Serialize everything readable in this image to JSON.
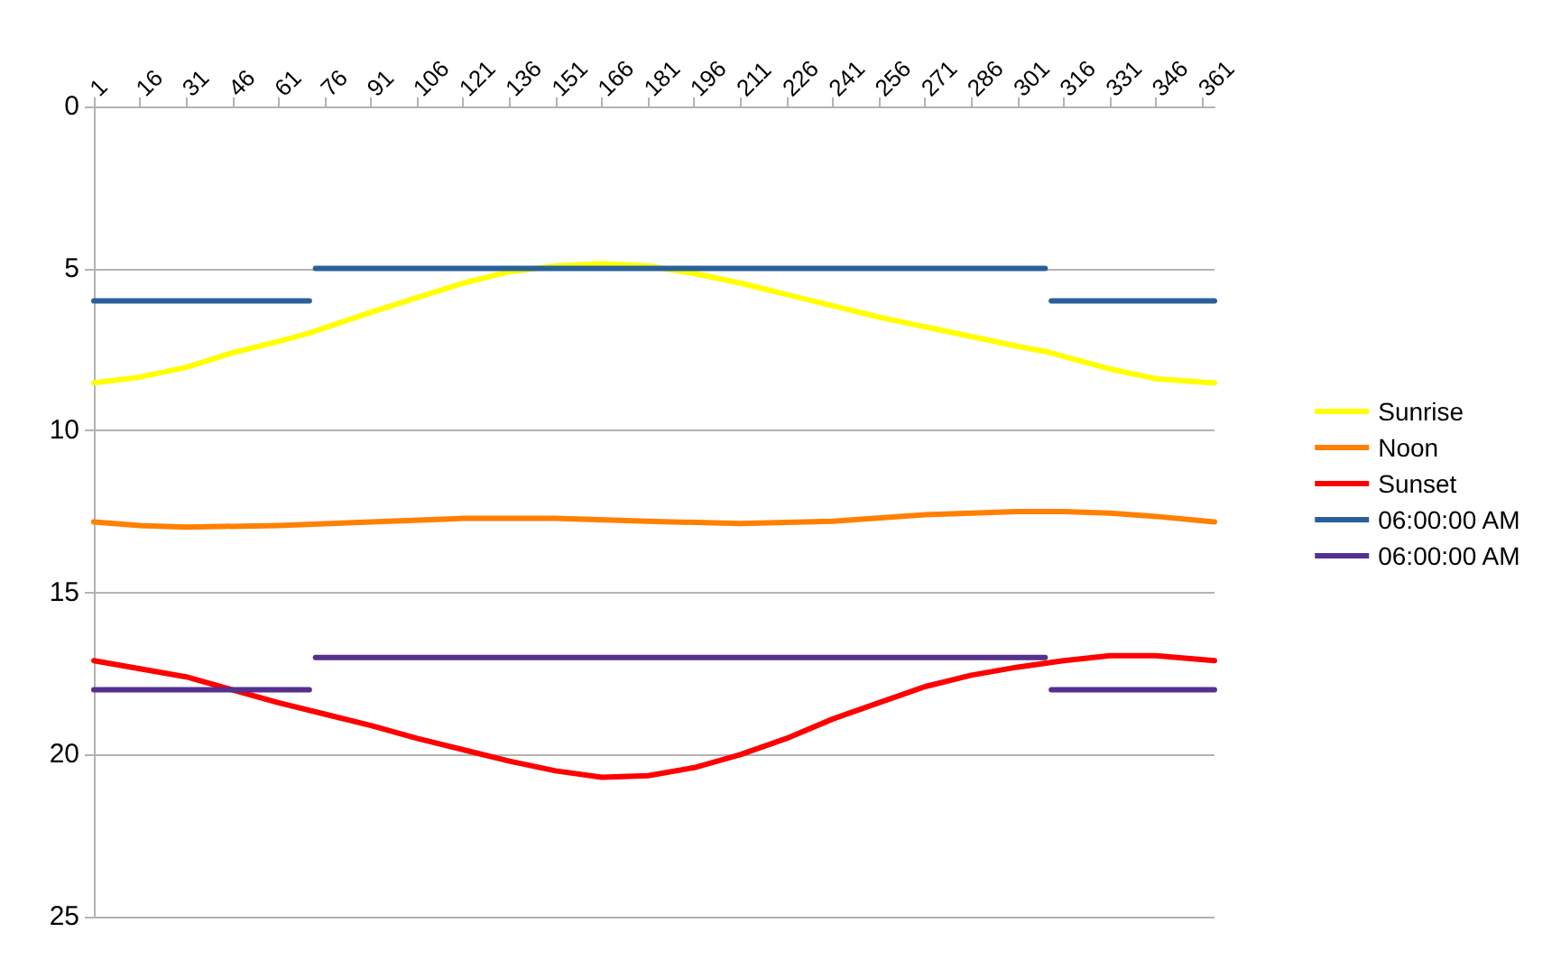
{
  "chart_data": {
    "type": "line",
    "xlim": [
      1,
      365
    ],
    "xticks": [
      1,
      16,
      31,
      46,
      61,
      76,
      91,
      106,
      121,
      136,
      151,
      166,
      181,
      196,
      211,
      226,
      241,
      256,
      271,
      286,
      301,
      316,
      331,
      346,
      361
    ],
    "ylim": [
      25,
      0
    ],
    "yticks": [
      0,
      5,
      10,
      15,
      20,
      25
    ],
    "grid": "y",
    "legend": "right",
    "marker": "none",
    "line_style": "solid",
    "series": [
      {
        "name": "Sunrise",
        "color": "#ffff00",
        "x": [
          1,
          16,
          31,
          46,
          61,
          71,
          91,
          106,
          121,
          136,
          151,
          166,
          181,
          196,
          211,
          226,
          241,
          256,
          271,
          286,
          301,
          311,
          331,
          346,
          365
        ],
        "values": [
          8.53,
          8.35,
          8.05,
          7.6,
          7.25,
          6.99,
          6.35,
          5.9,
          5.45,
          5.1,
          4.92,
          4.85,
          4.92,
          5.15,
          5.45,
          5.8,
          6.15,
          6.5,
          6.8,
          7.1,
          7.4,
          7.58,
          8.1,
          8.4,
          8.53
        ]
      },
      {
        "name": "Noon",
        "color": "#ff8000",
        "x": [
          1,
          16,
          31,
          61,
          91,
          121,
          151,
          181,
          211,
          241,
          271,
          301,
          316,
          331,
          346,
          365
        ],
        "values": [
          12.82,
          12.93,
          12.98,
          12.93,
          12.82,
          12.71,
          12.71,
          12.8,
          12.87,
          12.8,
          12.6,
          12.5,
          12.5,
          12.55,
          12.65,
          12.82
        ]
      },
      {
        "name": "Sunset",
        "color": "#ff0000",
        "x": [
          1,
          16,
          31,
          46,
          61,
          76,
          91,
          106,
          121,
          136,
          151,
          166,
          181,
          196,
          211,
          226,
          241,
          256,
          271,
          286,
          301,
          316,
          331,
          346,
          365
        ],
        "values": [
          17.1,
          17.35,
          17.6,
          18.0,
          18.4,
          18.75,
          19.1,
          19.5,
          19.85,
          20.2,
          20.5,
          20.7,
          20.65,
          20.4,
          20.0,
          19.5,
          18.9,
          18.4,
          17.9,
          17.55,
          17.3,
          17.1,
          16.95,
          16.95,
          17.1
        ]
      },
      {
        "name": "06:00:00 AM",
        "color": "#2a6099",
        "x": [
          1,
          71,
          72,
          73,
          310,
          311,
          312,
          365
        ],
        "values": [
          6,
          6,
          null,
          5,
          5,
          null,
          6,
          6
        ]
      },
      {
        "name": "06:00:00 AM",
        "color": "#55308d",
        "x": [
          1,
          71,
          72,
          73,
          310,
          311,
          312,
          365
        ],
        "values": [
          18,
          18,
          null,
          17,
          17,
          null,
          18,
          18
        ]
      }
    ]
  }
}
